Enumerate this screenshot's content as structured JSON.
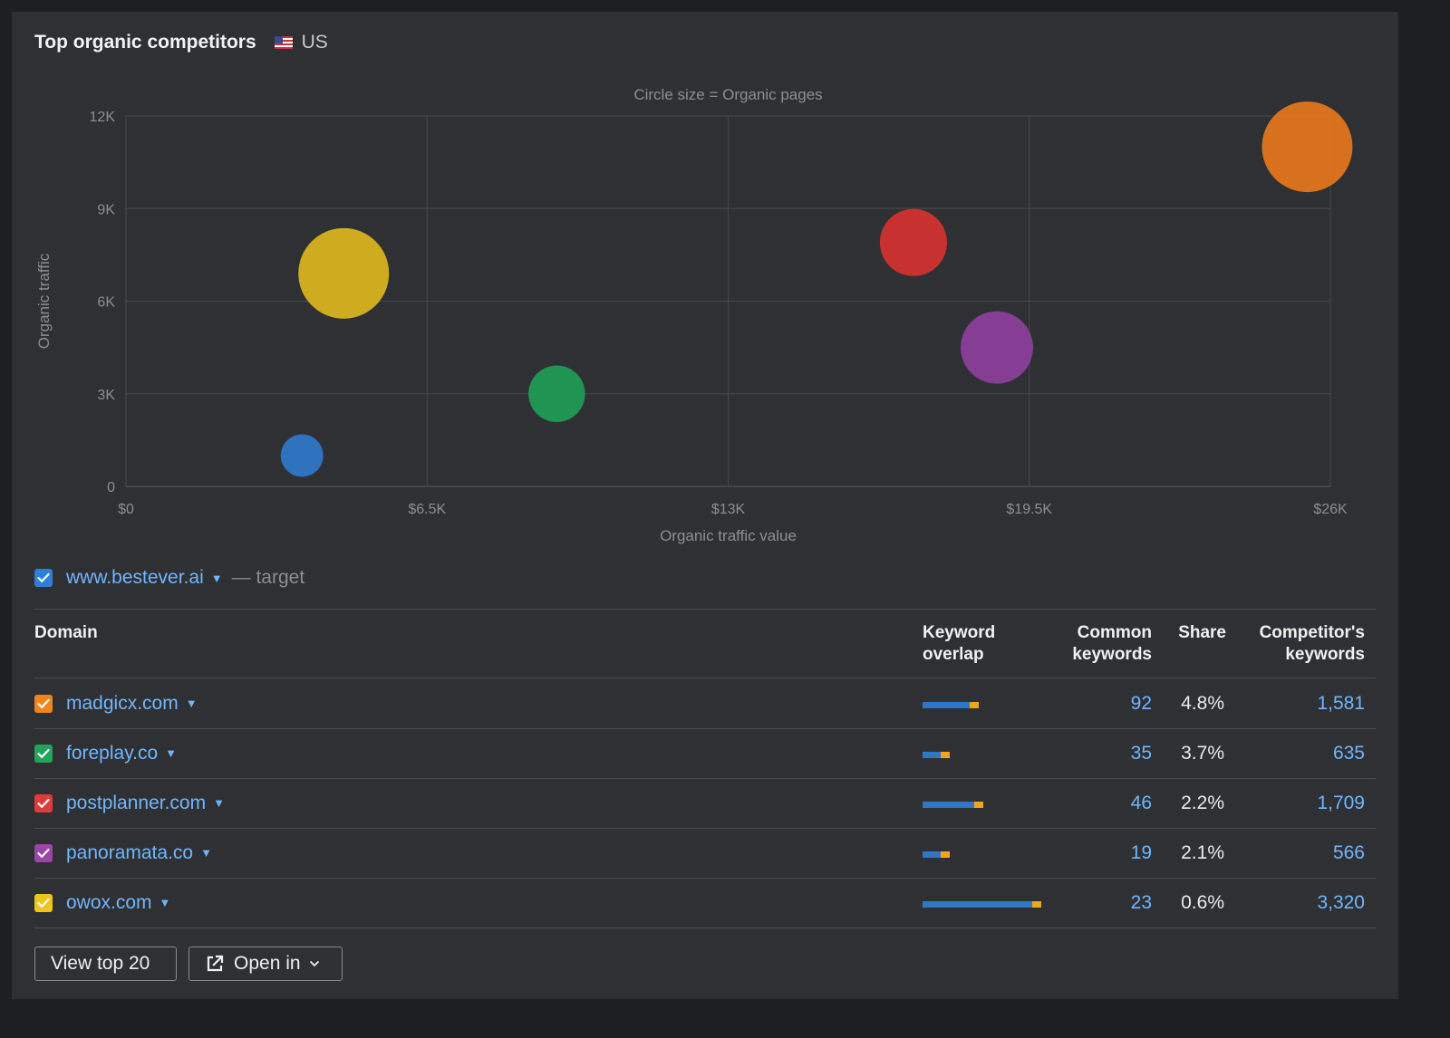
{
  "header": {
    "title": "Top organic competitors",
    "country": "US",
    "flag_icon": "us-flag-icon"
  },
  "chart_data": {
    "type": "scatter",
    "subtitle": "Circle size = Organic pages",
    "xlabel": "Organic traffic value",
    "ylabel": "Organic traffic",
    "xlim": [
      0,
      26000
    ],
    "ylim": [
      0,
      12000
    ],
    "x_ticks": [
      0,
      6500,
      13000,
      19500,
      26000
    ],
    "x_tick_labels": [
      "$0",
      "$6.5K",
      "$13K",
      "$19.5K",
      "$26K"
    ],
    "y_ticks": [
      0,
      3000,
      6000,
      9000,
      12000
    ],
    "y_tick_labels": [
      "0",
      "3K",
      "6K",
      "9K",
      "12K"
    ],
    "grid": true,
    "points": [
      {
        "x": 3800,
        "y": 1000,
        "size": 0.22,
        "color": "#2f76c5"
      },
      {
        "x": 4700,
        "y": 6900,
        "size": 1.0,
        "color": "#d8b21f"
      },
      {
        "x": 9300,
        "y": 3000,
        "size": 0.39,
        "color": "#1f9a55"
      },
      {
        "x": 17000,
        "y": 7900,
        "size": 0.55,
        "color": "#d0322f"
      },
      {
        "x": 18800,
        "y": 4500,
        "size": 0.64,
        "color": "#8a3f9a"
      },
      {
        "x": 25500,
        "y": 11000,
        "size": 1.0,
        "color": "#e0751c"
      }
    ]
  },
  "target": {
    "domain": "www.bestever.ai",
    "suffix": "— target",
    "color": "#2f7fd4"
  },
  "table": {
    "headers": {
      "domain": "Domain",
      "overlap_1": "Keyword",
      "overlap_2": "overlap",
      "common_1": "Common",
      "common_2": "keywords",
      "share": "Share",
      "comp_1": "Competitor's",
      "comp_2": "keywords"
    },
    "rows": [
      {
        "domain": "madgicx.com",
        "color": "#f0851e",
        "overlap_common": 92,
        "overlap_total": 1581,
        "common": "92",
        "share": "4.8%",
        "competitor_keywords": "1,581"
      },
      {
        "domain": "foreplay.co",
        "color": "#23a45c",
        "overlap_common": 35,
        "overlap_total": 635,
        "common": "35",
        "share": "3.7%",
        "competitor_keywords": "635"
      },
      {
        "domain": "postplanner.com",
        "color": "#e03b3b",
        "overlap_common": 46,
        "overlap_total": 1709,
        "common": "46",
        "share": "2.2%",
        "competitor_keywords": "1,709"
      },
      {
        "domain": "panoramata.co",
        "color": "#9a45a8",
        "overlap_common": 19,
        "overlap_total": 566,
        "common": "19",
        "share": "2.1%",
        "competitor_keywords": "566"
      },
      {
        "domain": "owox.com",
        "color": "#efc51c",
        "overlap_common": 23,
        "overlap_total": 3320,
        "common": "23",
        "share": "0.6%",
        "competitor_keywords": "3,320"
      }
    ]
  },
  "buttons": {
    "view_top": "View top 20",
    "open_in": "Open in"
  },
  "colors": {
    "link": "#6fb6ff",
    "bar_blue": "#2f76c5",
    "bar_orange": "#f2a51c"
  }
}
